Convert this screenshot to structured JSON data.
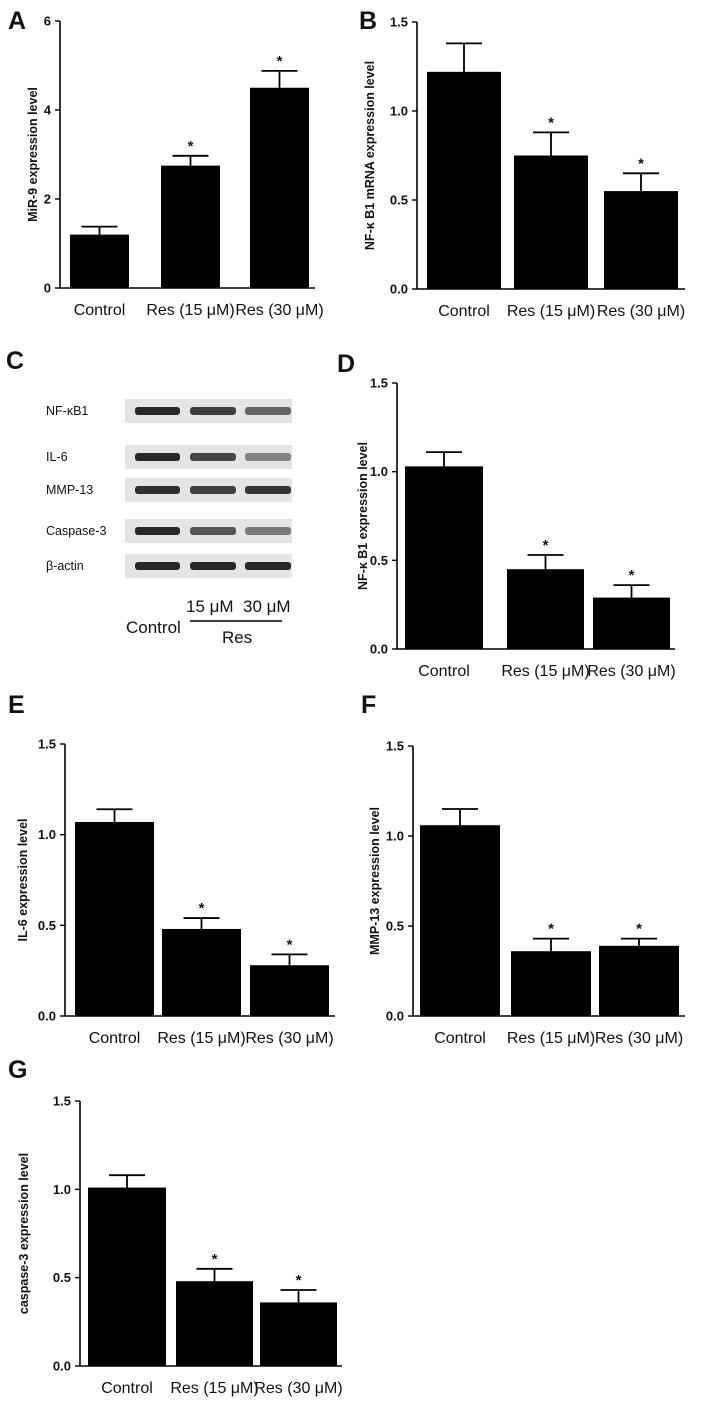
{
  "colors": {
    "bar": "#000000",
    "axis": "#000000",
    "background": "#ffffff"
  },
  "chart_data": [
    {
      "panel": "A",
      "type": "bar",
      "ylabel": "MiR-9 expression level",
      "categories": [
        "Control",
        "Res (15 μM)",
        "Res (30 μM)"
      ],
      "values": [
        1.2,
        2.75,
        4.5
      ],
      "errors": [
        0.18,
        0.22,
        0.38
      ],
      "significance": [
        "",
        "*",
        "*"
      ],
      "ylim": [
        0,
        6
      ],
      "yticks": [
        "0",
        "2",
        "4",
        "6"
      ]
    },
    {
      "panel": "B",
      "type": "bar",
      "ylabel": "NF-κ B1 mRNA expression level",
      "categories": [
        "Control",
        "Res (15 μM)",
        "Res (30 μM)"
      ],
      "values": [
        1.22,
        0.75,
        0.55
      ],
      "errors": [
        0.16,
        0.13,
        0.1
      ],
      "significance": [
        "",
        "*",
        "*"
      ],
      "ylim": [
        0,
        1.5
      ],
      "yticks": [
        "0.0",
        "0.5",
        "1.0",
        "1.5"
      ]
    },
    {
      "panel": "D",
      "type": "bar",
      "ylabel": "NF-κ B1 expression level",
      "categories": [
        "Control",
        "Res (15 μM)",
        "Res (30 μM)"
      ],
      "values": [
        1.03,
        0.45,
        0.29
      ],
      "errors": [
        0.08,
        0.08,
        0.07
      ],
      "significance": [
        "",
        "*",
        "*"
      ],
      "ylim": [
        0,
        1.5
      ],
      "yticks": [
        "0.0",
        "0.5",
        "1.0",
        "1.5"
      ]
    },
    {
      "panel": "E",
      "type": "bar",
      "ylabel": "IL-6 expression level",
      "categories": [
        "Control",
        "Res (15 μM)",
        "Res (30 μM)"
      ],
      "values": [
        1.07,
        0.48,
        0.28
      ],
      "errors": [
        0.07,
        0.06,
        0.06
      ],
      "significance": [
        "",
        "*",
        "*"
      ],
      "ylim": [
        0,
        1.5
      ],
      "yticks": [
        "0.0",
        "0.5",
        "1.0",
        "1.5"
      ]
    },
    {
      "panel": "F",
      "type": "bar",
      "ylabel": "MMP-13 expression level",
      "categories": [
        "Control",
        "Res (15 μM)",
        "Res (30 μM)"
      ],
      "values": [
        1.06,
        0.36,
        0.39
      ],
      "errors": [
        0.09,
        0.07,
        0.04
      ],
      "significance": [
        "",
        "*",
        "*"
      ],
      "ylim": [
        0,
        1.5
      ],
      "yticks": [
        "0.0",
        "0.5",
        "1.0",
        "1.5"
      ]
    },
    {
      "panel": "G",
      "type": "bar",
      "ylabel": "caspase-3 expression level",
      "categories": [
        "Control",
        "Res (15 μM)",
        "Res (30 μM)"
      ],
      "values": [
        1.01,
        0.48,
        0.36
      ],
      "errors": [
        0.07,
        0.07,
        0.07
      ],
      "significance": [
        "",
        "*",
        "*"
      ],
      "ylim": [
        0,
        1.5
      ],
      "yticks": [
        "0.0",
        "0.5",
        "1.0",
        "1.5"
      ]
    }
  ],
  "blot": {
    "panel": "C",
    "proteins": [
      "NF-κB1",
      "IL-6",
      "MMP-13",
      "Caspase-3",
      "β-actin"
    ],
    "lanes": [
      "Control",
      "15 μM",
      "30 μM"
    ],
    "group_label": "Res",
    "band_intensity": [
      [
        1.0,
        0.85,
        0.6
      ],
      [
        1.0,
        0.8,
        0.4
      ],
      [
        0.95,
        0.85,
        0.9
      ],
      [
        1.0,
        0.7,
        0.45
      ],
      [
        1.0,
        1.0,
        1.0
      ]
    ]
  }
}
